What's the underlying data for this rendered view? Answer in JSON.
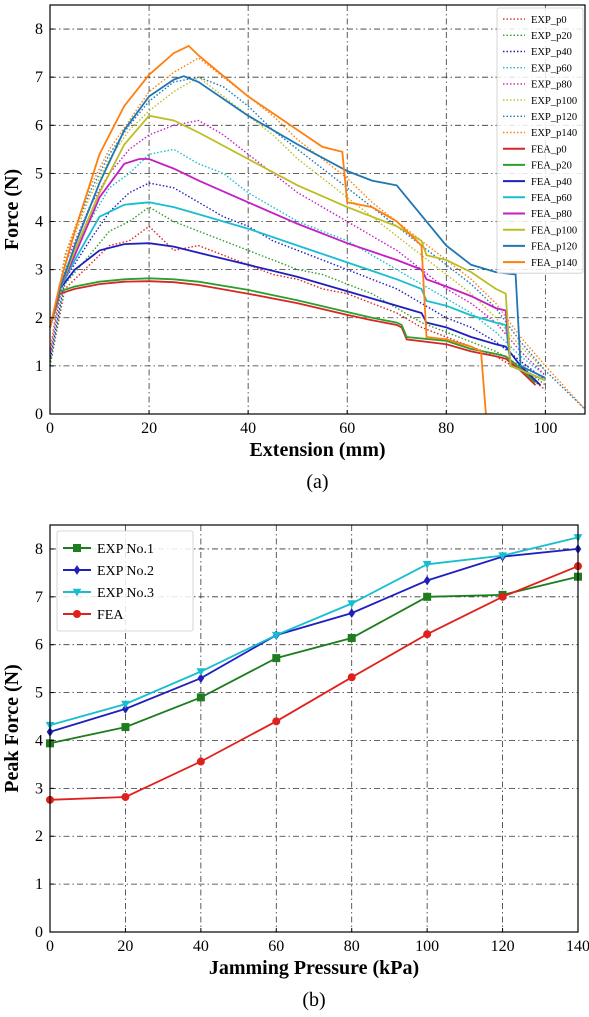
{
  "chart_data": [
    {
      "type": "line",
      "caption": "(a)",
      "xlabel": "Extension (mm)",
      "ylabel": "Force (N)",
      "xlim": [
        0,
        108
      ],
      "ylim": [
        0,
        8.5
      ],
      "xticks": [
        0,
        20,
        40,
        60,
        80,
        100
      ],
      "yticks": [
        0,
        1,
        2,
        3,
        4,
        5,
        6,
        7,
        8
      ],
      "grid": true,
      "legend_position": "top-right",
      "series": [
        {
          "name": "EXP_p0",
          "color": "#d62728",
          "style": "dotted",
          "x": [
            0,
            3,
            8,
            12,
            16,
            20,
            25,
            30,
            35,
            40,
            45,
            50,
            55,
            60,
            65,
            70,
            75,
            80,
            85,
            90,
            95,
            100
          ],
          "y": [
            1.0,
            2.6,
            3.1,
            3.5,
            3.6,
            3.9,
            3.4,
            3.5,
            3.3,
            3.1,
            2.9,
            2.8,
            2.6,
            2.5,
            2.3,
            2.1,
            1.8,
            1.6,
            1.4,
            1.2,
            0.9,
            0.5
          ]
        },
        {
          "name": "EXP_p20",
          "color": "#2ca02c",
          "style": "dotted",
          "x": [
            0,
            3,
            8,
            12,
            16,
            20,
            25,
            30,
            35,
            40,
            45,
            50,
            55,
            60,
            65,
            70,
            75,
            80,
            85,
            90,
            95,
            100
          ],
          "y": [
            1.0,
            2.7,
            3.3,
            3.8,
            4.0,
            4.3,
            4.0,
            3.8,
            3.6,
            3.4,
            3.2,
            3.0,
            2.9,
            2.7,
            2.5,
            2.2,
            1.9,
            1.7,
            1.5,
            1.3,
            1.0,
            0.6
          ]
        },
        {
          "name": "EXP_p40",
          "color": "#1f1fbf",
          "style": "dotted",
          "x": [
            0,
            3,
            8,
            12,
            16,
            20,
            25,
            30,
            35,
            40,
            45,
            50,
            55,
            60,
            65,
            70,
            75,
            80,
            85,
            90,
            95,
            100
          ],
          "y": [
            1.1,
            2.8,
            3.6,
            4.2,
            4.6,
            4.8,
            4.7,
            4.4,
            4.1,
            3.9,
            3.6,
            3.4,
            3.2,
            3.0,
            2.8,
            2.6,
            2.3,
            2.0,
            1.8,
            1.5,
            1.1,
            0.7
          ]
        },
        {
          "name": "EXP_p60",
          "color": "#17becf",
          "style": "dotted",
          "x": [
            0,
            3,
            8,
            12,
            16,
            20,
            25,
            30,
            35,
            40,
            45,
            50,
            55,
            60,
            65,
            70,
            75,
            80,
            85,
            90,
            95,
            100
          ],
          "y": [
            1.2,
            3.0,
            4.0,
            4.7,
            5.0,
            5.4,
            5.5,
            5.2,
            5.0,
            4.6,
            4.3,
            4.0,
            3.8,
            3.6,
            3.3,
            3.0,
            2.7,
            2.4,
            2.1,
            1.7,
            1.2,
            0.8
          ]
        },
        {
          "name": "EXP_p80",
          "color": "#c41ec4",
          "style": "dotted",
          "x": [
            0,
            3,
            8,
            12,
            16,
            20,
            25,
            30,
            35,
            40,
            45,
            50,
            55,
            60,
            65,
            70,
            75,
            80,
            85,
            90,
            95,
            100
          ],
          "y": [
            1.2,
            3.1,
            4.3,
            5.0,
            5.5,
            5.8,
            6.0,
            6.1,
            5.8,
            5.4,
            5.0,
            4.6,
            4.3,
            4.0,
            3.7,
            3.4,
            3.0,
            2.6,
            2.3,
            1.9,
            1.3,
            0.8
          ]
        },
        {
          "name": "EXP_p100",
          "color": "#bcbd22",
          "style": "dotted",
          "x": [
            0,
            3,
            8,
            12,
            16,
            20,
            25,
            30,
            35,
            40,
            45,
            50,
            55,
            60,
            65,
            70,
            75,
            80,
            85,
            90,
            95,
            100
          ],
          "y": [
            1.3,
            3.2,
            4.5,
            5.3,
            5.9,
            6.3,
            6.7,
            7.0,
            6.6,
            6.2,
            5.8,
            5.3,
            4.9,
            4.5,
            4.1,
            3.7,
            3.3,
            2.9,
            2.5,
            2.0,
            1.4,
            0.9
          ]
        },
        {
          "name": "EXP_p120",
          "color": "#1f77b4",
          "style": "dotted",
          "x": [
            0,
            3,
            8,
            12,
            16,
            20,
            25,
            30,
            35,
            40,
            45,
            50,
            55,
            60,
            65,
            70,
            75,
            80,
            85,
            90,
            95,
            100,
            108
          ],
          "y": [
            1.3,
            3.3,
            4.6,
            5.4,
            6.0,
            6.5,
            6.9,
            7.0,
            6.8,
            6.4,
            5.9,
            5.5,
            5.1,
            4.7,
            4.3,
            3.9,
            3.5,
            3.1,
            2.7,
            2.2,
            1.5,
            0.9,
            0.1
          ]
        },
        {
          "name": "EXP_p140",
          "color": "#ff7f0e",
          "style": "dotted",
          "x": [
            0,
            3,
            8,
            12,
            16,
            20,
            25,
            30,
            35,
            40,
            45,
            50,
            55,
            60,
            65,
            70,
            75,
            80,
            85,
            90,
            95,
            100,
            108
          ],
          "y": [
            1.3,
            3.3,
            4.7,
            5.5,
            6.1,
            6.7,
            7.1,
            7.4,
            7.0,
            6.6,
            6.2,
            5.7,
            5.3,
            4.9,
            4.4,
            4.0,
            3.6,
            3.2,
            2.8,
            2.3,
            1.6,
            1.0,
            0.1
          ]
        },
        {
          "name": "FEA_p0",
          "color": "#d62728",
          "style": "solid",
          "x": [
            0,
            2,
            5,
            10,
            15,
            20,
            25,
            30,
            40,
            50,
            60,
            65,
            70,
            71,
            72,
            80,
            85,
            90,
            92,
            95,
            98
          ],
          "y": [
            1.8,
            2.5,
            2.6,
            2.7,
            2.75,
            2.76,
            2.74,
            2.68,
            2.5,
            2.3,
            2.06,
            1.95,
            1.85,
            1.8,
            1.55,
            1.45,
            1.3,
            1.2,
            1.15,
            0.9,
            0.6
          ]
        },
        {
          "name": "FEA_p20",
          "color": "#2ca02c",
          "style": "solid",
          "x": [
            0,
            2,
            5,
            10,
            15,
            20,
            25,
            30,
            40,
            50,
            60,
            65,
            70,
            71,
            72,
            80,
            85,
            90,
            92,
            95,
            98
          ],
          "y": [
            1.8,
            2.55,
            2.65,
            2.75,
            2.8,
            2.82,
            2.8,
            2.75,
            2.58,
            2.36,
            2.12,
            2.0,
            1.9,
            1.85,
            1.6,
            1.52,
            1.35,
            1.25,
            1.2,
            0.95,
            0.65
          ]
        },
        {
          "name": "FEA_p40",
          "color": "#1f1fbf",
          "style": "solid",
          "x": [
            0,
            2,
            5,
            10,
            15,
            20,
            25,
            30,
            40,
            50,
            60,
            70,
            75,
            76,
            80,
            85,
            90,
            92,
            95,
            99
          ],
          "y": [
            1.8,
            2.6,
            3.0,
            3.4,
            3.53,
            3.55,
            3.48,
            3.35,
            3.1,
            2.85,
            2.55,
            2.25,
            2.1,
            1.9,
            1.8,
            1.6,
            1.45,
            1.4,
            1.0,
            0.6
          ]
        },
        {
          "name": "FEA_p60",
          "color": "#17becf",
          "style": "solid",
          "x": [
            0,
            2,
            5,
            10,
            15,
            20,
            25,
            30,
            40,
            50,
            60,
            70,
            75,
            76,
            80,
            85,
            90,
            92,
            93,
            100
          ],
          "y": [
            1.8,
            2.6,
            3.2,
            4.1,
            4.35,
            4.4,
            4.3,
            4.15,
            3.85,
            3.5,
            3.15,
            2.8,
            2.6,
            2.35,
            2.25,
            2.05,
            1.9,
            1.85,
            1.0,
            0.7
          ]
        },
        {
          "name": "FEA_p80",
          "color": "#c41ec4",
          "style": "solid",
          "x": [
            0,
            2,
            5,
            10,
            15,
            18,
            20,
            25,
            30,
            40,
            50,
            60,
            70,
            75,
            76,
            80,
            85,
            90,
            92,
            93,
            100
          ],
          "y": [
            1.8,
            2.6,
            3.3,
            4.5,
            5.2,
            5.3,
            5.3,
            5.1,
            4.85,
            4.4,
            3.95,
            3.55,
            3.2,
            3.0,
            2.8,
            2.65,
            2.45,
            2.2,
            2.15,
            1.0,
            0.7
          ]
        },
        {
          "name": "FEA_p100",
          "color": "#bcbd22",
          "style": "solid",
          "x": [
            0,
            2,
            5,
            10,
            15,
            20,
            25,
            30,
            40,
            50,
            60,
            70,
            75,
            76,
            80,
            85,
            90,
            92,
            93,
            100
          ],
          "y": [
            1.8,
            2.6,
            3.4,
            4.6,
            5.6,
            6.2,
            6.1,
            5.85,
            5.3,
            4.75,
            4.3,
            3.9,
            3.6,
            3.3,
            3.2,
            2.95,
            2.6,
            2.5,
            1.0,
            0.7
          ]
        },
        {
          "name": "FEA_p120",
          "color": "#1f77b4",
          "style": "solid",
          "x": [
            0,
            2,
            5,
            10,
            15,
            20,
            25,
            27,
            30,
            40,
            50,
            60,
            65,
            70,
            80,
            85,
            90,
            94,
            95,
            100
          ],
          "y": [
            1.8,
            2.6,
            3.5,
            4.8,
            5.9,
            6.6,
            6.95,
            7.02,
            6.9,
            6.2,
            5.6,
            5.05,
            4.85,
            4.75,
            3.5,
            3.1,
            2.95,
            2.9,
            1.0,
            0.75
          ]
        },
        {
          "name": "FEA_p140",
          "color": "#ff7f0e",
          "style": "solid",
          "x": [
            0,
            2,
            5,
            10,
            15,
            20,
            25,
            28,
            30,
            40,
            50,
            55,
            59,
            60,
            65,
            70,
            75,
            76,
            80,
            85,
            87,
            88
          ],
          "y": [
            1.8,
            2.7,
            3.8,
            5.4,
            6.4,
            7.05,
            7.5,
            7.65,
            7.45,
            6.6,
            5.9,
            5.55,
            5.45,
            4.4,
            4.3,
            4.0,
            3.5,
            1.6,
            1.55,
            1.4,
            1.3,
            0.0
          ]
        }
      ]
    },
    {
      "type": "line",
      "caption": "(b)",
      "xlabel": "Jamming Pressure (kPa)",
      "ylabel": "Peak Force (N)",
      "xlim": [
        0,
        140
      ],
      "ylim": [
        0,
        8.5
      ],
      "xticks": [
        0,
        20,
        40,
        60,
        80,
        100,
        120,
        140
      ],
      "yticks": [
        0,
        1,
        2,
        3,
        4,
        5,
        6,
        7,
        8
      ],
      "grid": true,
      "legend_position": "top-left",
      "x": [
        0,
        20,
        40,
        60,
        80,
        100,
        120,
        140
      ],
      "series": [
        {
          "name": "EXP No.1",
          "color": "#1e7d1e",
          "marker": "square",
          "values": [
            3.94,
            4.28,
            4.9,
            5.72,
            6.14,
            7.0,
            7.04,
            7.42
          ]
        },
        {
          "name": "EXP No.2",
          "color": "#1f1fbf",
          "marker": "diamond",
          "values": [
            4.18,
            4.66,
            5.3,
            6.2,
            6.66,
            7.34,
            7.84,
            8.0
          ]
        },
        {
          "name": "EXP No.3",
          "color": "#17becf",
          "marker": "triangle-down",
          "values": [
            4.32,
            4.76,
            5.44,
            6.2,
            6.86,
            7.68,
            7.86,
            8.24
          ]
        },
        {
          "name": "FEA",
          "color": "#e0201c",
          "marker": "circle",
          "values": [
            2.76,
            2.82,
            3.56,
            4.4,
            5.32,
            6.22,
            7.0,
            7.64
          ]
        }
      ]
    }
  ]
}
